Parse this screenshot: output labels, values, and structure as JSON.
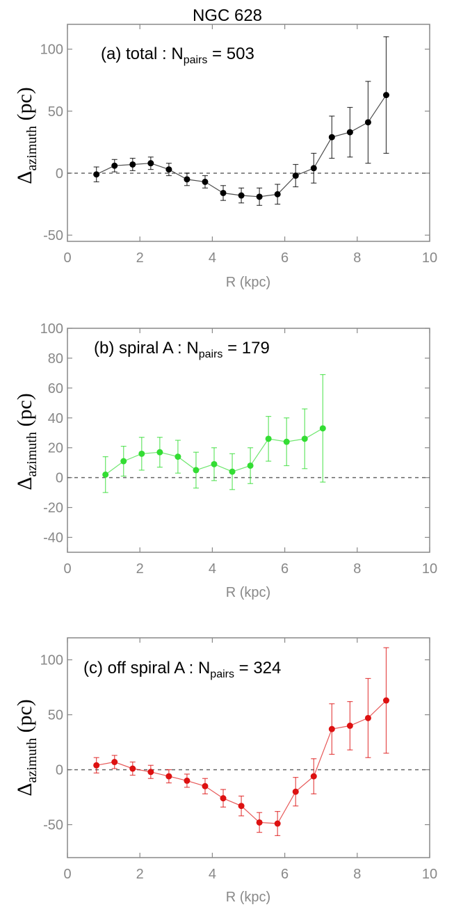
{
  "figure_title": "NGC 628",
  "colors": {
    "axis": "#888888",
    "zero_line": "#666666"
  },
  "chart_data": [
    {
      "type": "scatter",
      "panel_label": "(a) total : N",
      "panel_label_sub": "pairs",
      "panel_label_tail": " = 503",
      "xlabel": "R (kpc)",
      "ylabel": "Δ",
      "ylabel_sub": "azimuth",
      "ylabel_tail": " (pc)",
      "xlim": [
        0,
        10
      ],
      "ylim": [
        -55,
        120
      ],
      "xticks": [
        0,
        2,
        4,
        6,
        8,
        10
      ],
      "yticks": [
        -50,
        0,
        50,
        100
      ],
      "zero_line": true,
      "series": [
        {
          "color": "#000000",
          "x": [
            0.8,
            1.3,
            1.8,
            2.3,
            2.8,
            3.3,
            3.8,
            4.3,
            4.8,
            5.3,
            5.8,
            6.3,
            6.8,
            7.3,
            7.8,
            8.3,
            8.8
          ],
          "y": [
            -1,
            6,
            7,
            8,
            3,
            -5,
            -7,
            -16,
            -18,
            -19,
            -17,
            -2,
            4,
            29,
            33,
            41,
            63
          ],
          "err": [
            6,
            5,
            5,
            5,
            5,
            5,
            5,
            6,
            6,
            7,
            8,
            9,
            12,
            17,
            20,
            33,
            47
          ]
        }
      ]
    },
    {
      "type": "scatter",
      "panel_label": "(b) spiral A : N",
      "panel_label_sub": "pairs",
      "panel_label_tail": " = 179",
      "xlabel": "R (kpc)",
      "ylabel": "Δ",
      "ylabel_sub": "azimuth",
      "ylabel_tail": " (pc)",
      "xlim": [
        0,
        10
      ],
      "ylim": [
        -50,
        100
      ],
      "xticks": [
        0,
        2,
        4,
        6,
        8,
        10
      ],
      "yticks": [
        -40,
        -20,
        0,
        20,
        40,
        60,
        80,
        100
      ],
      "zero_line": true,
      "series": [
        {
          "color": "#33dd33",
          "x": [
            1.05,
            1.55,
            2.05,
            2.55,
            3.05,
            3.55,
            4.05,
            4.55,
            5.05,
            5.55,
            6.05,
            6.55,
            7.05
          ],
          "y": [
            2,
            11,
            16,
            17,
            14,
            5,
            9,
            4,
            8,
            26,
            24,
            26,
            33
          ],
          "err": [
            12,
            10,
            11,
            10,
            11,
            12,
            11,
            12,
            12,
            15,
            16,
            20,
            36
          ]
        }
      ]
    },
    {
      "type": "scatter",
      "panel_label": "(c) off spiral A : N",
      "panel_label_sub": "pairs",
      "panel_label_tail": " = 324",
      "xlabel": "R (kpc)",
      "ylabel": "Δ",
      "ylabel_sub": "azimuth",
      "ylabel_tail": " (pc)",
      "xlim": [
        0,
        10
      ],
      "ylim": [
        -80,
        120
      ],
      "xticks": [
        0,
        2,
        4,
        6,
        8,
        10
      ],
      "yticks": [
        -50,
        0,
        50,
        100
      ],
      "zero_line": true,
      "series": [
        {
          "color": "#dd1111",
          "x": [
            0.8,
            1.3,
            1.8,
            2.3,
            2.8,
            3.3,
            3.8,
            4.3,
            4.8,
            5.3,
            5.8,
            6.3,
            6.8,
            7.3,
            7.8,
            8.3,
            8.8
          ],
          "y": [
            4,
            7,
            1,
            -2,
            -6,
            -10,
            -15,
            -26,
            -33,
            -48,
            -49,
            -20,
            -6,
            37,
            40,
            47,
            63
          ],
          "err": [
            7,
            6,
            6,
            6,
            6,
            6,
            7,
            8,
            9,
            9,
            11,
            13,
            16,
            23,
            22,
            36,
            48
          ]
        }
      ]
    }
  ]
}
